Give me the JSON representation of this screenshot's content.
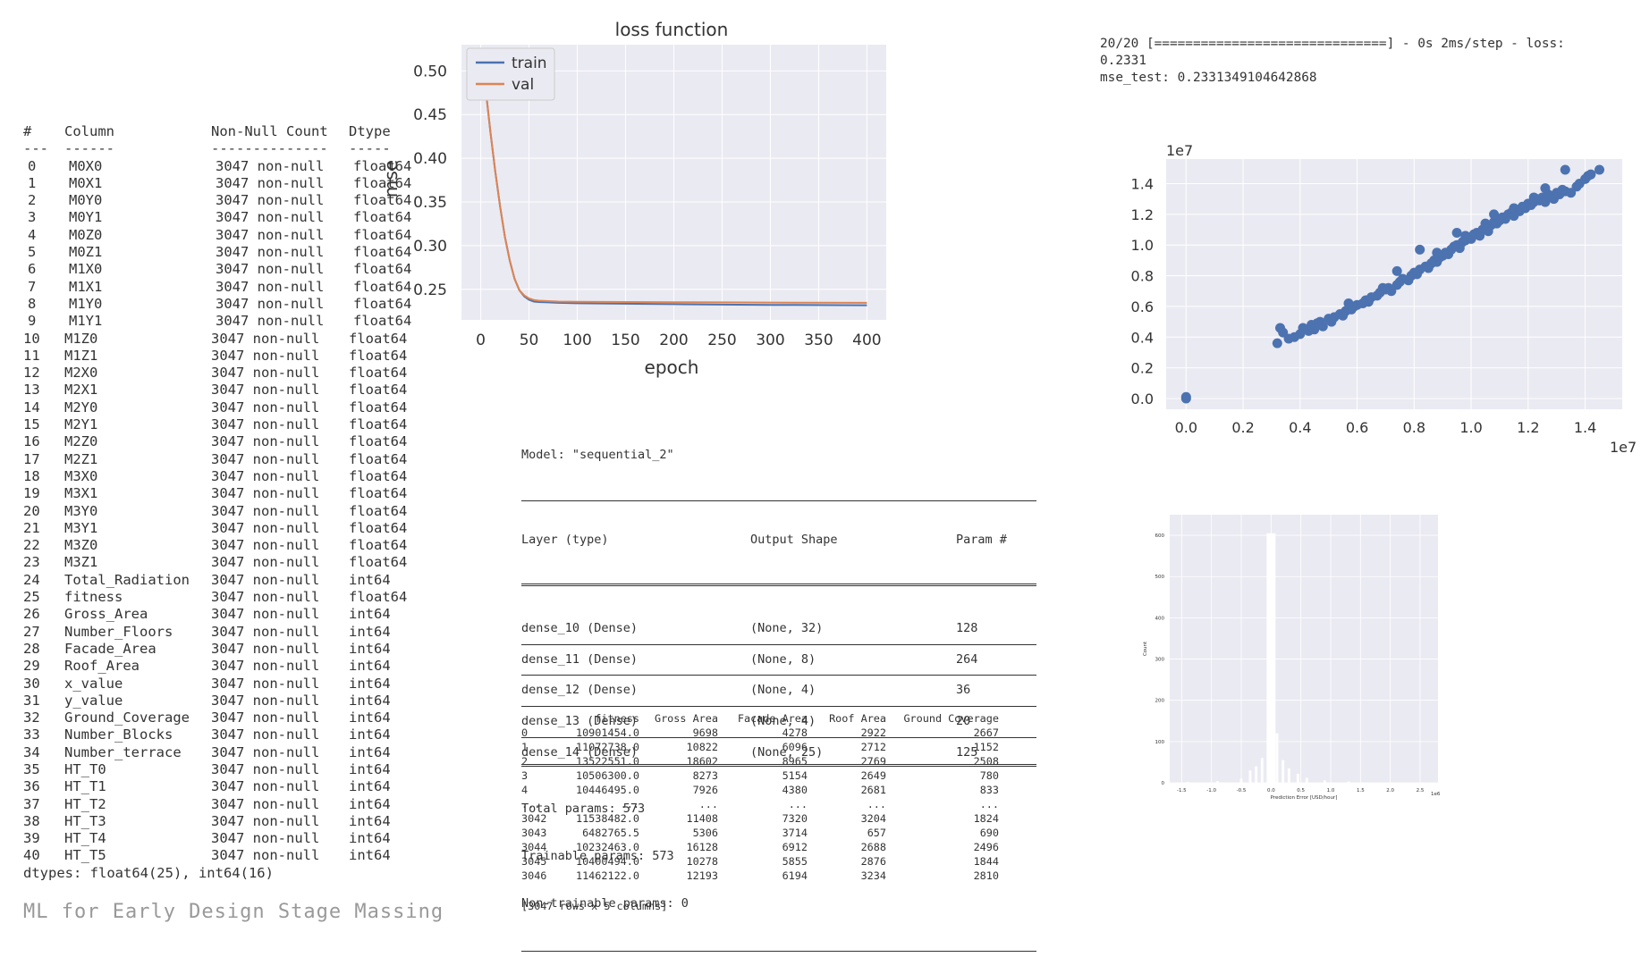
{
  "info": {
    "headers": [
      "#",
      "Column",
      "Non-Null Count",
      "Dtype"
    ],
    "dashes": [
      "---",
      "------",
      "--------------",
      "-----"
    ],
    "rows": [
      [
        "0",
        "M0X0",
        "3047 non-null",
        "float64"
      ],
      [
        "1",
        "M0X1",
        "3047 non-null",
        "float64"
      ],
      [
        "2",
        "M0Y0",
        "3047 non-null",
        "float64"
      ],
      [
        "3",
        "M0Y1",
        "3047 non-null",
        "float64"
      ],
      [
        "4",
        "M0Z0",
        "3047 non-null",
        "float64"
      ],
      [
        "5",
        "M0Z1",
        "3047 non-null",
        "float64"
      ],
      [
        "6",
        "M1X0",
        "3047 non-null",
        "float64"
      ],
      [
        "7",
        "M1X1",
        "3047 non-null",
        "float64"
      ],
      [
        "8",
        "M1Y0",
        "3047 non-null",
        "float64"
      ],
      [
        "9",
        "M1Y1",
        "3047 non-null",
        "float64"
      ],
      [
        "10",
        "M1Z0",
        "3047 non-null",
        "float64"
      ],
      [
        "11",
        "M1Z1",
        "3047 non-null",
        "float64"
      ],
      [
        "12",
        "M2X0",
        "3047 non-null",
        "float64"
      ],
      [
        "13",
        "M2X1",
        "3047 non-null",
        "float64"
      ],
      [
        "14",
        "M2Y0",
        "3047 non-null",
        "float64"
      ],
      [
        "15",
        "M2Y1",
        "3047 non-null",
        "float64"
      ],
      [
        "16",
        "M2Z0",
        "3047 non-null",
        "float64"
      ],
      [
        "17",
        "M2Z1",
        "3047 non-null",
        "float64"
      ],
      [
        "18",
        "M3X0",
        "3047 non-null",
        "float64"
      ],
      [
        "19",
        "M3X1",
        "3047 non-null",
        "float64"
      ],
      [
        "20",
        "M3Y0",
        "3047 non-null",
        "float64"
      ],
      [
        "21",
        "M3Y1",
        "3047 non-null",
        "float64"
      ],
      [
        "22",
        "M3Z0",
        "3047 non-null",
        "float64"
      ],
      [
        "23",
        "M3Z1",
        "3047 non-null",
        "float64"
      ],
      [
        "24",
        "Total_Radiation",
        "3047 non-null",
        "int64"
      ],
      [
        "25",
        "fitness",
        "3047 non-null",
        "float64"
      ],
      [
        "26",
        "Gross_Area",
        "3047 non-null",
        "int64"
      ],
      [
        "27",
        "Number_Floors",
        "3047 non-null",
        "int64"
      ],
      [
        "28",
        "Facade_Area",
        "3047 non-null",
        "int64"
      ],
      [
        "29",
        "Roof_Area",
        "3047 non-null",
        "int64"
      ],
      [
        "30",
        "x_value",
        "3047 non-null",
        "int64"
      ],
      [
        "31",
        "y_value",
        "3047 non-null",
        "int64"
      ],
      [
        "32",
        "Ground_Coverage",
        "3047 non-null",
        "int64"
      ],
      [
        "33",
        "Number_Blocks",
        "3047 non-null",
        "int64"
      ],
      [
        "34",
        "Number_terrace",
        "3047 non-null",
        "int64"
      ],
      [
        "35",
        "HT_T0",
        "3047 non-null",
        "int64"
      ],
      [
        "36",
        "HT_T1",
        "3047 non-null",
        "int64"
      ],
      [
        "37",
        "HT_T2",
        "3047 non-null",
        "int64"
      ],
      [
        "38",
        "HT_T3",
        "3047 non-null",
        "int64"
      ],
      [
        "39",
        "HT_T4",
        "3047 non-null",
        "int64"
      ],
      [
        "40",
        "HT_T5",
        "3047 non-null",
        "int64"
      ]
    ],
    "footer": "dtypes: float64(25), int64(16)"
  },
  "caption": "ML for Early Design Stage Massing",
  "console": {
    "line1": "20/20 [==============================] - 0s 2ms/step - loss:",
    "line2": "0.2331",
    "line3": "mse_test: 0.2331349104642868"
  },
  "model_summary": {
    "title": "Model: \"sequential_2\"",
    "headers": [
      "Layer (type)",
      "Output Shape",
      "Param #"
    ],
    "layers": [
      [
        "dense_10 (Dense)",
        "(None, 32)",
        "128"
      ],
      [
        "dense_11 (Dense)",
        "(None, 8)",
        "264"
      ],
      [
        "dense_12 (Dense)",
        "(None, 4)",
        "36"
      ],
      [
        "dense_13 (Dense)",
        "(None, 4)",
        "20"
      ],
      [
        "dense_14 (Dense)",
        "(None, 25)",
        "125"
      ]
    ],
    "total": "Total params: 573",
    "trainable": "Trainable params: 573",
    "non_trainable": "Non-trainable params: 0"
  },
  "dataframe": {
    "columns": [
      "fitness",
      "Gross Area",
      "Facade Area",
      "Roof Area",
      "Ground Coverage"
    ],
    "rows": [
      [
        "0",
        "10901454.0",
        "9698",
        "4278",
        "2922",
        "2667"
      ],
      [
        "1",
        "11072738.0",
        "10822",
        "6096",
        "2712",
        "1152"
      ],
      [
        "2",
        "13522551.0",
        "18602",
        "8965",
        "2769",
        "2508"
      ],
      [
        "3",
        "10506300.0",
        "8273",
        "5154",
        "2649",
        "780"
      ],
      [
        "4",
        "10446495.0",
        "7926",
        "4380",
        "2681",
        "833"
      ],
      [
        "...",
        "...",
        "...",
        "...",
        "...",
        "..."
      ],
      [
        "3042",
        "11538482.0",
        "11408",
        "7320",
        "3204",
        "1824"
      ],
      [
        "3043",
        "6482765.5",
        "5306",
        "3714",
        "657",
        "690"
      ],
      [
        "3044",
        "10232463.0",
        "16128",
        "6912",
        "2688",
        "2496"
      ],
      [
        "3045",
        "10400494.0",
        "10278",
        "5855",
        "2876",
        "1844"
      ],
      [
        "3046",
        "11462122.0",
        "12193",
        "6194",
        "3234",
        "2810"
      ]
    ],
    "shape": "[3047 rows x 5 columns]"
  },
  "chart_data": [
    {
      "type": "line",
      "title": "loss function",
      "xlabel": "epoch",
      "ylabel": "mse",
      "xlim": [
        -20,
        420
      ],
      "ylim": [
        0.215,
        0.53
      ],
      "xticks": [
        0,
        50,
        100,
        150,
        200,
        250,
        300,
        350,
        400
      ],
      "yticks": [
        0.25,
        0.3,
        0.35,
        0.4,
        0.45,
        0.5
      ],
      "ytick_labels": [
        "0.25",
        "0.30",
        "0.35",
        "0.40",
        "0.45",
        "0.50"
      ],
      "legend": "top-left",
      "grid": true,
      "series": [
        {
          "name": "train",
          "color": "#4c72b0",
          "x": [
            0,
            5,
            10,
            15,
            20,
            25,
            30,
            35,
            40,
            45,
            50,
            55,
            60,
            70,
            80,
            100,
            150,
            200,
            250,
            300,
            350,
            400
          ],
          "y": [
            0.52,
            0.48,
            0.43,
            0.385,
            0.345,
            0.31,
            0.283,
            0.262,
            0.249,
            0.242,
            0.238,
            0.236,
            0.2355,
            0.235,
            0.2345,
            0.234,
            0.2335,
            0.233,
            0.2325,
            0.2322,
            0.232,
            0.2318
          ]
        },
        {
          "name": "val",
          "color": "#dd8452",
          "x": [
            0,
            5,
            10,
            15,
            20,
            25,
            30,
            35,
            40,
            45,
            50,
            55,
            60,
            70,
            80,
            100,
            150,
            200,
            250,
            300,
            350,
            400
          ],
          "y": [
            0.52,
            0.48,
            0.43,
            0.385,
            0.345,
            0.31,
            0.283,
            0.262,
            0.249,
            0.243,
            0.2395,
            0.2378,
            0.237,
            0.2365,
            0.236,
            0.2358,
            0.2355,
            0.2352,
            0.235,
            0.2348,
            0.2346,
            0.2345
          ]
        }
      ]
    },
    {
      "type": "scatter",
      "title": "",
      "xlabel": "",
      "ylabel": "",
      "x_offset_label": "1e7",
      "y_offset_label": "1e7",
      "xlim": [
        -0.07,
        1.53
      ],
      "ylim": [
        -0.07,
        1.56
      ],
      "xticks": [
        0.0,
        0.2,
        0.4,
        0.6,
        0.8,
        1.0,
        1.2,
        1.4
      ],
      "xtick_labels": [
        "0.0",
        "0.2",
        "0.4",
        "0.6",
        "0.8",
        "1.0",
        "1.2",
        "1.4"
      ],
      "yticks": [
        0.0,
        0.2,
        0.4,
        0.6,
        0.8,
        1.0,
        1.2,
        1.4
      ],
      "ytick_labels": [
        "0.0",
        "0.2",
        "0.4",
        "0.6",
        "0.8",
        "1.0",
        "1.2",
        "1.4"
      ],
      "grid": true,
      "color": "#4c72b0",
      "x": [
        0.0,
        0.0,
        0.32,
        0.33,
        0.36,
        0.38,
        0.4,
        0.41,
        0.43,
        0.44,
        0.45,
        0.47,
        0.48,
        0.5,
        0.51,
        0.52,
        0.54,
        0.55,
        0.56,
        0.58,
        0.59,
        0.6,
        0.62,
        0.63,
        0.64,
        0.65,
        0.67,
        0.68,
        0.7,
        0.71,
        0.72,
        0.74,
        0.75,
        0.76,
        0.78,
        0.79,
        0.8,
        0.81,
        0.82,
        0.84,
        0.85,
        0.86,
        0.87,
        0.88,
        0.89,
        0.9,
        0.91,
        0.92,
        0.93,
        0.94,
        0.95,
        0.96,
        0.97,
        0.98,
        0.99,
        1.0,
        1.01,
        1.02,
        1.03,
        1.04,
        1.05,
        1.06,
        1.07,
        1.08,
        1.09,
        1.1,
        1.11,
        1.12,
        1.13,
        1.14,
        1.15,
        1.16,
        1.17,
        1.18,
        1.19,
        1.2,
        1.21,
        1.22,
        1.23,
        1.24,
        1.25,
        1.26,
        1.27,
        1.28,
        1.29,
        1.3,
        1.31,
        1.32,
        1.33,
        1.35,
        1.37,
        1.38,
        1.4,
        1.41,
        1.42,
        1.45,
        0.82,
        0.74,
        0.95,
        0.88,
        1.05,
        1.15,
        1.22,
        1.08,
        0.98,
        0.69,
        0.57,
        0.46,
        0.34,
        1.33,
        1.26
      ],
      "y": [
        0.0,
        0.01,
        0.36,
        0.46,
        0.39,
        0.4,
        0.42,
        0.46,
        0.44,
        0.48,
        0.45,
        0.5,
        0.47,
        0.52,
        0.5,
        0.53,
        0.55,
        0.54,
        0.57,
        0.58,
        0.6,
        0.61,
        0.62,
        0.64,
        0.63,
        0.66,
        0.67,
        0.69,
        0.71,
        0.72,
        0.7,
        0.74,
        0.76,
        0.78,
        0.77,
        0.8,
        0.82,
        0.81,
        0.84,
        0.86,
        0.85,
        0.88,
        0.9,
        0.89,
        0.92,
        0.93,
        0.95,
        0.94,
        0.97,
        0.99,
        1.0,
        0.98,
        1.02,
        1.03,
        1.05,
        1.04,
        1.07,
        1.08,
        1.06,
        1.1,
        1.11,
        1.09,
        1.13,
        1.15,
        1.14,
        1.16,
        1.18,
        1.17,
        1.2,
        1.21,
        1.19,
        1.23,
        1.22,
        1.25,
        1.24,
        1.27,
        1.26,
        1.28,
        1.3,
        1.29,
        1.31,
        1.28,
        1.33,
        1.32,
        1.3,
        1.34,
        1.33,
        1.36,
        1.35,
        1.34,
        1.38,
        1.4,
        1.43,
        1.45,
        1.46,
        1.49,
        0.97,
        0.83,
        1.08,
        0.95,
        1.14,
        1.24,
        1.31,
        1.2,
        1.06,
        0.72,
        0.62,
        0.49,
        0.43,
        1.49,
        1.37
      ]
    },
    {
      "type": "bar",
      "title": "",
      "xlabel": "Prediction Error [USD/hour]",
      "ylabel": "Count",
      "x_offset_label": "1e6",
      "xlim": [
        -1.7,
        2.8
      ],
      "ylim": [
        0,
        650
      ],
      "xticks": [
        -1.5,
        -1.0,
        -0.5,
        0.0,
        0.5,
        1.0,
        1.5,
        2.0,
        2.5
      ],
      "xtick_labels": [
        "-1.5",
        "-1.0",
        "-0.5",
        "0.0",
        "0.5",
        "1.0",
        "1.5",
        "2.0",
        "2.5"
      ],
      "yticks": [
        0,
        100,
        200,
        300,
        400,
        500,
        600
      ],
      "ytick_labels": [
        "0",
        "100",
        "200",
        "300",
        "400",
        "500",
        "600"
      ],
      "grid": true,
      "color": "#eaeaf2",
      "bins": [
        -1.4,
        -0.9,
        -0.5,
        -0.35,
        -0.25,
        -0.15,
        -0.05,
        0.0,
        0.1,
        0.2,
        0.3,
        0.45,
        0.6,
        0.9,
        1.3
      ],
      "values": [
        2,
        4,
        10,
        30,
        40,
        60,
        110,
        605,
        120,
        55,
        35,
        22,
        12,
        6,
        3
      ]
    }
  ]
}
